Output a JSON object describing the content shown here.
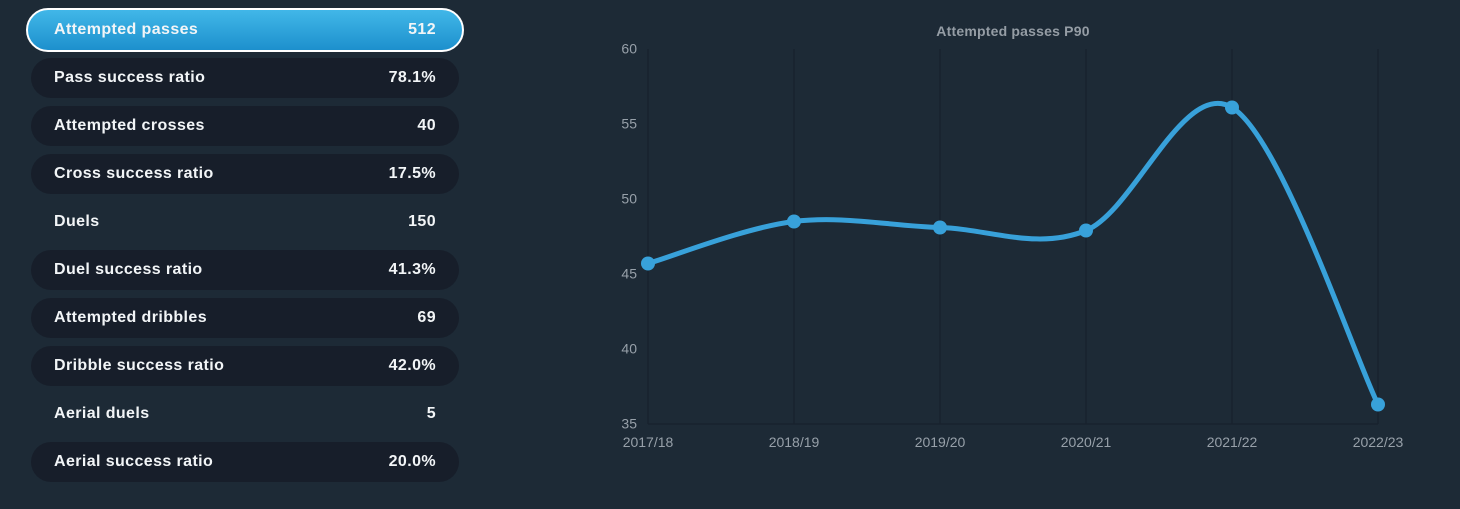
{
  "colors": {
    "background": "#1d2a36",
    "pill": "#171e2a",
    "selected_gradient_top": "#41b7e8",
    "selected_gradient_bottom": "#1d90cd",
    "selected_border": "#ffffff",
    "line": "#38a1da",
    "grid": "#18222e",
    "tick_text": "#97a0a9",
    "title_text": "#959da5",
    "list_text": "#f2f5f7"
  },
  "stats": {
    "rows": [
      {
        "label": "Attempted passes",
        "value": "512",
        "state": "selected"
      },
      {
        "label": "Pass success ratio",
        "value": "78.1%",
        "state": "pill"
      },
      {
        "label": "Attempted crosses",
        "value": "40",
        "state": "pill"
      },
      {
        "label": "Cross success ratio",
        "value": "17.5%",
        "state": "pill"
      },
      {
        "label": "Duels",
        "value": "150",
        "state": "plain"
      },
      {
        "label": "Duel success ratio",
        "value": "41.3%",
        "state": "pill"
      },
      {
        "label": "Attempted dribbles",
        "value": "69",
        "state": "pill"
      },
      {
        "label": "Dribble success ratio",
        "value": "42.0%",
        "state": "pill"
      },
      {
        "label": "Aerial duels",
        "value": "5",
        "state": "plain"
      },
      {
        "label": "Aerial success ratio",
        "value": "20.0%",
        "state": "pill"
      }
    ]
  },
  "chart_data": {
    "type": "line",
    "title": "Attempted passes P90",
    "categories": [
      "2017/18",
      "2018/19",
      "2019/20",
      "2020/21",
      "2021/22",
      "2022/23"
    ],
    "values": [
      45.7,
      48.5,
      48.1,
      47.9,
      56.1,
      36.3
    ],
    "xlabel": "",
    "ylabel": "",
    "ylim": [
      35,
      60
    ],
    "yticks": [
      35,
      40,
      45,
      50,
      55,
      60
    ],
    "grid": "vertical",
    "legend": "none",
    "smooth": true,
    "marker": "circle"
  }
}
